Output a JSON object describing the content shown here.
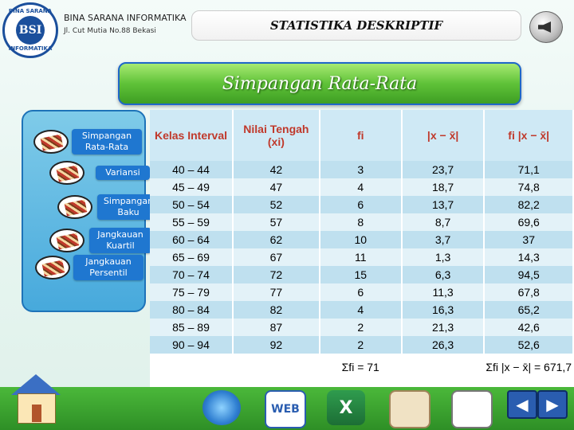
{
  "header": {
    "org_name": "BINA SARANA INFORMATIKA",
    "address": "Jl. Cut Mutia No.88 Bekasi",
    "title": "STATISTIKA DESKRIPTIF",
    "logo_text": "BSI",
    "logo_ring_top": "BINA SARANA",
    "logo_ring_bottom": "INFORMATIKA"
  },
  "banner": {
    "title": "Simpangan Rata-Rata"
  },
  "nav": {
    "items": [
      {
        "label": "Simpangan Rata-Rata"
      },
      {
        "label": "Variansi"
      },
      {
        "label": "Simpangan Baku"
      },
      {
        "label": "Jangkauan Kuartil"
      },
      {
        "label": "Jangkauan Persentil"
      }
    ]
  },
  "table": {
    "headers": [
      "Kelas Interval",
      "Nilai Tengah (xi)",
      "fi",
      "|x − x̄|",
      "fi |x − x̄|"
    ],
    "rows": [
      [
        "40 – 44",
        "42",
        "3",
        "23,7",
        "71,1"
      ],
      [
        "45 – 49",
        "47",
        "4",
        "18,7",
        "74,8"
      ],
      [
        "50 – 54",
        "52",
        "6",
        "13,7",
        "82,2"
      ],
      [
        "55 – 59",
        "57",
        "8",
        "8,7",
        "69,6"
      ],
      [
        "60 – 64",
        "62",
        "10",
        "3,7",
        "37"
      ],
      [
        "65 – 69",
        "67",
        "11",
        "1,3",
        "14,3"
      ],
      [
        "70 – 74",
        "72",
        "15",
        "6,3",
        "94,5"
      ],
      [
        "75 – 79",
        "77",
        "6",
        "11,3",
        "67,8"
      ],
      [
        "80 – 84",
        "82",
        "4",
        "16,3",
        "65,2"
      ],
      [
        "85 – 89",
        "87",
        "2",
        "21,3",
        "42,6"
      ],
      [
        "90 – 94",
        "92",
        "2",
        "26,3",
        "52,6"
      ]
    ],
    "footer": {
      "sum_f": "Σfi = 71",
      "sum_fx": "Σfi |x − x̄| = 671,7"
    }
  },
  "bottom": {
    "web_label": "WEB",
    "excel_label": "X",
    "prev_label": "◀",
    "next_label": "▶"
  },
  "colors": {
    "banner": "#5fc238",
    "nav_label": "#1f77d0",
    "header_text": "#c0392b",
    "row_odd": "#bfe0ef"
  }
}
